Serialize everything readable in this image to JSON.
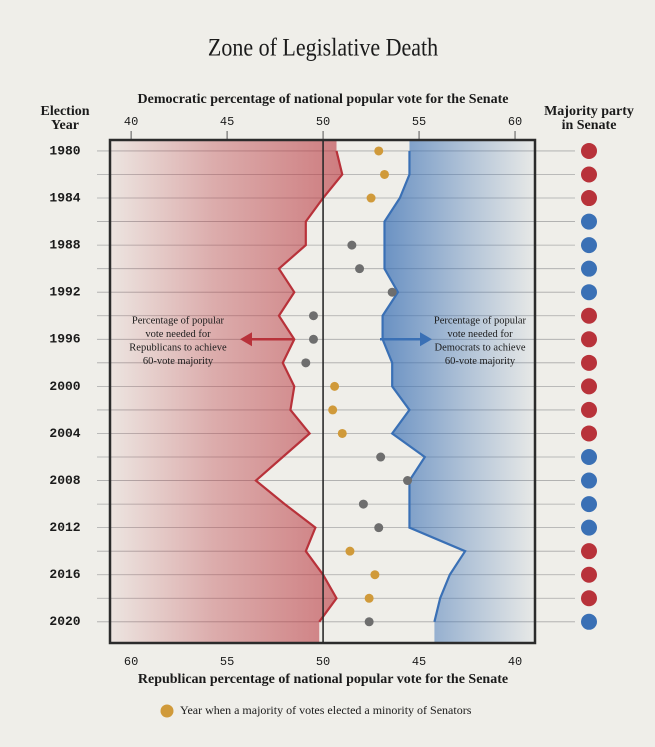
{
  "chart_data": {
    "type": "line",
    "title": "Zone of Legislative Death",
    "xlabel": "Democratic percentage of national popular vote for the Senate",
    "x2label": "Republican percentage of national popular vote for the Senate",
    "ylabel_lines": [
      "Election",
      "Year"
    ],
    "right_label_lines": [
      "Majority party",
      "in Senate"
    ],
    "xlim": [
      38.9,
      61.04
    ],
    "xticks": [
      40,
      45,
      50,
      55,
      60
    ],
    "x2lim": [
      61.1,
      38.96
    ],
    "x2ticks": [
      60,
      55,
      50,
      45,
      40
    ],
    "ylim": [
      1979.07,
      2021.8
    ],
    "yticks": [
      1980,
      1984,
      1988,
      1992,
      1996,
      2000,
      2004,
      2008,
      2012,
      2016,
      2020
    ],
    "y": [
      1980,
      1982,
      1984,
      1986,
      1988,
      1990,
      1992,
      1994,
      1996,
      1998,
      2000,
      2002,
      2004,
      2006,
      2008,
      2010,
      2012,
      2014,
      2016,
      2018,
      2020
    ],
    "series": [
      {
        "name": "Percentage of popular vote needed for Republicans to achieve 60-vote majority",
        "color": "#b8323a",
        "fill_side": "left",
        "values": [
          50.7,
          51.0,
          50.0,
          49.1,
          49.1,
          47.7,
          48.5,
          47.7,
          48.5,
          47.9,
          48.5,
          48.3,
          49.3,
          47.9,
          46.5,
          48.0,
          49.6,
          49.1,
          50.0,
          50.7,
          49.8
        ]
      },
      {
        "name": "Percentage of popular vote needed for Democrats to achieve 60-vote majority",
        "color": "#3a70b5",
        "fill_side": "right",
        "values": [
          54.5,
          54.5,
          54.0,
          53.2,
          53.2,
          53.2,
          53.9,
          53.1,
          53.1,
          53.6,
          53.6,
          54.5,
          53.6,
          55.3,
          54.5,
          54.5,
          54.5,
          57.4,
          56.6,
          56.1,
          55.8
        ]
      }
    ],
    "actual": {
      "values": [
        52.9,
        53.2,
        52.5,
        null,
        51.5,
        51.9,
        53.6,
        49.5,
        49.5,
        49.1,
        50.6,
        50.5,
        51.0,
        53.0,
        54.4,
        52.1,
        52.9,
        51.4,
        52.7,
        52.4,
        52.4
      ],
      "colors": [
        "#d09a3a",
        "#d09a3a",
        "#d09a3a",
        null,
        "#6e6e6e",
        "#6e6e6e",
        "#6e6e6e",
        "#6e6e6e",
        "#6e6e6e",
        "#6e6e6e",
        "#d09a3a",
        "#d09a3a",
        "#d09a3a",
        "#6e6e6e",
        "#6e6e6e",
        "#6e6e6e",
        "#6e6e6e",
        "#d09a3a",
        "#d09a3a",
        "#d09a3a",
        "#6e6e6e"
      ]
    },
    "majority_colors": [
      "#b8323a",
      "#b8323a",
      "#b8323a",
      "#3a70b5",
      "#3a70b5",
      "#3a70b5",
      "#3a70b5",
      "#b8323a",
      "#b8323a",
      "#b8323a",
      "#b8323a",
      "#b8323a",
      "#b8323a",
      "#3a70b5",
      "#3a70b5",
      "#3a70b5",
      "#3a70b5",
      "#b8323a",
      "#b8323a",
      "#b8323a",
      "#3a70b5"
    ],
    "annotations": [
      {
        "lines": [
          "Percentage of popular",
          "vote needed for",
          "Republicans to achieve",
          "60-vote majority"
        ],
        "series": 0
      },
      {
        "lines": [
          "Percentage of popular",
          "vote needed for",
          "Democrats to achieve",
          "60-vote majority"
        ],
        "series": 1
      }
    ],
    "legend": {
      "color": "#d09a3a",
      "label": "Year when a majority of  votes elected a minority of Senators"
    },
    "center_line": 50,
    "grid": true
  }
}
